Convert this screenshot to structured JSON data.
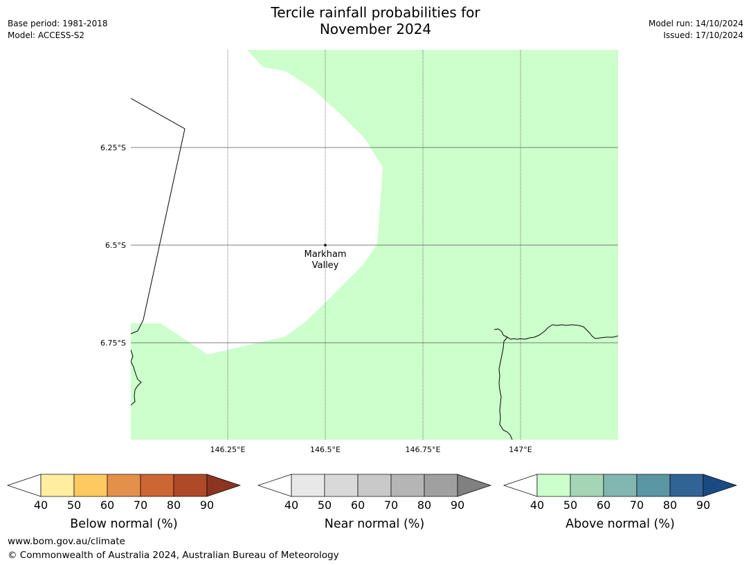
{
  "header": {
    "title_line1": "Tercile rainfall probabilities for",
    "title_line2": "November 2024",
    "base_period": "Base period: 1981-2018",
    "model": "Model: ACCESS-S2",
    "model_run": "Model run: 14/10/2024",
    "issued": "Issued: 17/10/2024"
  },
  "map": {
    "lat_labels": [
      "6.25°S",
      "6.5°S",
      "6.75°S"
    ],
    "lon_labels": [
      "146.25°E",
      "146.5°E",
      "146.75°E",
      "147°E"
    ],
    "location": {
      "name_line1": "Markham",
      "name_line2": "Valley",
      "lon": 146.5,
      "lat": -6.5
    },
    "colors": {
      "above_normal_fill": "#ccffcc",
      "no_dominant": "#ffffff",
      "coastline": "#000000",
      "grid": "#555555"
    }
  },
  "legends": [
    {
      "name": "below-normal",
      "label": "Below normal (%)",
      "ticks": [
        "40",
        "50",
        "60",
        "70",
        "80",
        "90"
      ],
      "colors": [
        "#ffffff",
        "#ffeda0",
        "#fec960",
        "#e3904a",
        "#cc6633",
        "#ae4a28",
        "#8b3520"
      ]
    },
    {
      "name": "near-normal",
      "label": "Near normal (%)",
      "ticks": [
        "40",
        "50",
        "60",
        "70",
        "80",
        "90"
      ],
      "colors": [
        "#ffffff",
        "#e8e8e8",
        "#d9d9d9",
        "#c9c9c9",
        "#b5b5b5",
        "#a0a0a0",
        "#808080"
      ]
    },
    {
      "name": "above-normal",
      "label": "Above normal (%)",
      "ticks": [
        "40",
        "50",
        "60",
        "70",
        "80",
        "90"
      ],
      "colors": [
        "#ffffff",
        "#ccffcc",
        "#a6d5b5",
        "#82b6b0",
        "#5a96a3",
        "#316395",
        "#1a4a82"
      ]
    }
  ],
  "footer": {
    "url": "www.bom.gov.au/climate",
    "copyright": "© Commonwealth of Australia 2024, Australian Bureau of Meteorology"
  }
}
